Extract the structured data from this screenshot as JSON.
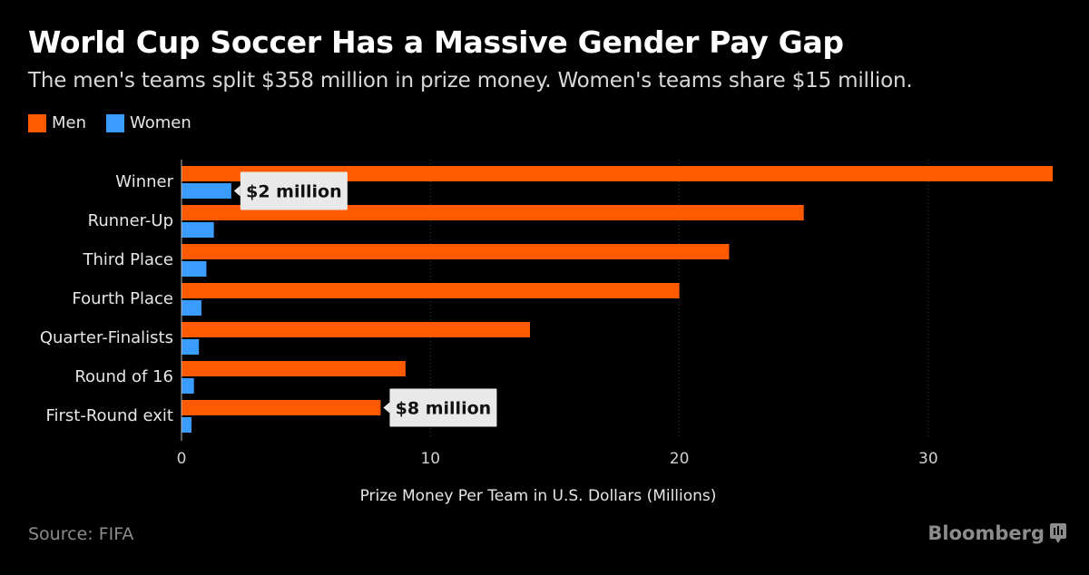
{
  "title": "World Cup Soccer Has a Massive Gender Pay Gap",
  "subtitle": "The men's teams split $358 million in prize money. Women's teams share $15 million.",
  "source": "Source: FIFA",
  "brand": "Bloomberg",
  "colors": {
    "men": "#ff5a00",
    "women": "#3b9cff",
    "background": "#000000",
    "callout_bg": "#e9e9e9"
  },
  "chart_data": {
    "type": "bar",
    "orientation": "horizontal",
    "categories": [
      "Winner",
      "Runner-Up",
      "Third Place",
      "Fourth Place",
      "Quarter-Finalists",
      "Round of 16",
      "First-Round exit"
    ],
    "series": [
      {
        "name": "Men",
        "color": "#ff5a00",
        "values": [
          35,
          25,
          22,
          20,
          14,
          9,
          8
        ]
      },
      {
        "name": "Women",
        "color": "#3b9cff",
        "values": [
          2,
          1.3,
          1,
          0.8,
          0.7,
          0.5,
          0.4
        ]
      }
    ],
    "xlabel": "Prize Money Per Team in U.S. Dollars (Millions)",
    "xlim": [
      0,
      35
    ],
    "xticks": [
      0,
      10,
      20,
      30
    ],
    "grid": true,
    "legend": "top-left",
    "annotations": [
      {
        "text": "$2 million",
        "series": "Women",
        "category": "Winner"
      },
      {
        "text": "$8 million",
        "series": "Men",
        "category": "First-Round exit"
      }
    ]
  }
}
